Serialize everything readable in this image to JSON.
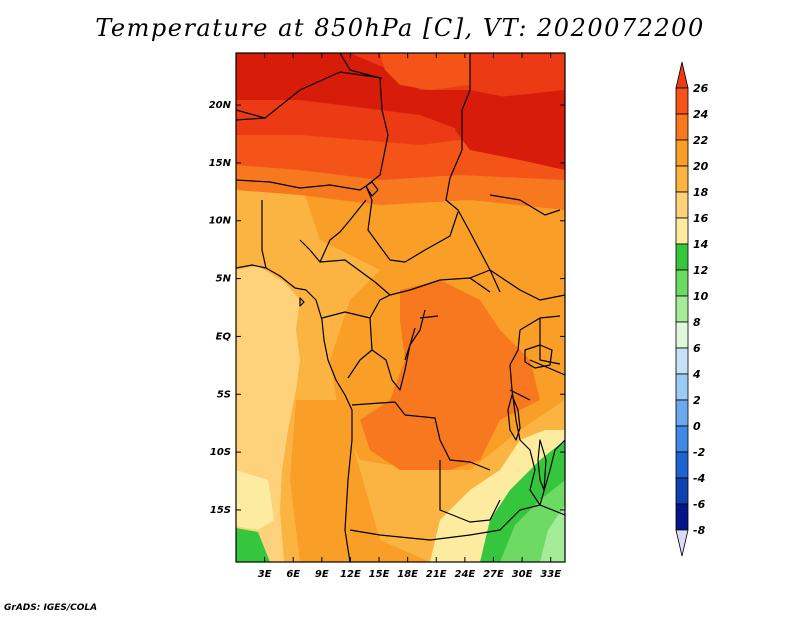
{
  "title": "Temperature at 850hPa [C], VT: 2020072200",
  "credit": "GrADS: IGES/COLA",
  "map": {
    "lon_range": [
      0,
      34.5
    ],
    "lat_range": [
      -19.5,
      24.5
    ],
    "lat_ticks": [
      {
        "value": 20,
        "label": "20N"
      },
      {
        "value": 15,
        "label": "15N"
      },
      {
        "value": 10,
        "label": "10N"
      },
      {
        "value": 5,
        "label": "5N"
      },
      {
        "value": 0,
        "label": "EQ"
      },
      {
        "value": -5,
        "label": "5S"
      },
      {
        "value": -10,
        "label": "10S"
      },
      {
        "value": -15,
        "label": "15S"
      }
    ],
    "lon_ticks": [
      {
        "value": 3,
        "label": "3E"
      },
      {
        "value": 6,
        "label": "6E"
      },
      {
        "value": 9,
        "label": "9E"
      },
      {
        "value": 12,
        "label": "12E"
      },
      {
        "value": 15,
        "label": "15E"
      },
      {
        "value": 18,
        "label": "18E"
      },
      {
        "value": 21,
        "label": "21E"
      },
      {
        "value": 24,
        "label": "24E"
      },
      {
        "value": 27,
        "label": "27E"
      },
      {
        "value": 30,
        "label": "30E"
      },
      {
        "value": 33,
        "label": "33E"
      }
    ]
  },
  "colorbar": {
    "levels": [
      26,
      24,
      22,
      20,
      18,
      16,
      14,
      12,
      10,
      8,
      6,
      4,
      2,
      0,
      -2,
      -4,
      -6,
      -8
    ],
    "labels": [
      "26",
      "24",
      "22",
      "20",
      "18",
      "16",
      "14",
      "12",
      "10",
      "8",
      "6",
      "4",
      "2",
      "0",
      "-2",
      "-4",
      "-6",
      "-8"
    ],
    "colors_top_to_bottom": [
      "#ec3b14",
      "#f45418",
      "#f7781e",
      "#f99e26",
      "#fbb341",
      "#fdd27a",
      "#fdeca0",
      "#36c63d",
      "#6cda63",
      "#a6ec98",
      "#def9dc",
      "#c6e2f7",
      "#9ccbf4",
      "#6aa9ec",
      "#3f88e4",
      "#1e63d0",
      "#0e42b0",
      "#06168a",
      "#dcdcf8"
    ]
  },
  "fill_colors": {
    "t26": "#d81c0a",
    "t24": "#ec3b14",
    "t22": "#f45418",
    "t20": "#f7781e",
    "t18": "#f99e26",
    "t16": "#fbb341",
    "t14": "#fdd27a",
    "t12": "#fdeca0",
    "t10": "#36c63d",
    "t8": "#6cda63",
    "t6": "#a6ec98"
  }
}
